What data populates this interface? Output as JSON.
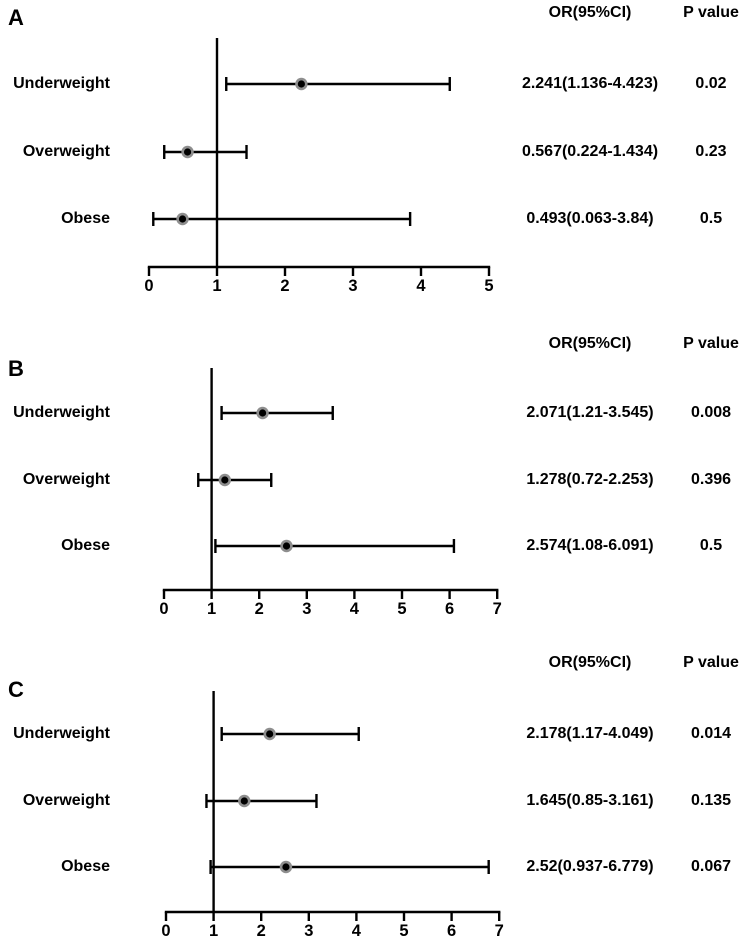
{
  "chart_data": [
    {
      "type": "forest",
      "panel": "A",
      "or_header": "OR(95%CI)",
      "p_header": "P value",
      "xlim": [
        0,
        5
      ],
      "ticks": [
        0,
        1,
        2,
        3,
        4,
        5
      ],
      "ref_line": 1,
      "rows": [
        {
          "label": "Underweight",
          "or": 2.241,
          "ci_low": 1.136,
          "ci_high": 4.423,
          "or_text": "2.241(1.136-4.423)",
          "p_text": "0.02"
        },
        {
          "label": "Overweight",
          "or": 0.567,
          "ci_low": 0.224,
          "ci_high": 1.434,
          "or_text": "0.567(0.224-1.434)",
          "p_text": "0.23"
        },
        {
          "label": "Obese",
          "or": 0.493,
          "ci_low": 0.063,
          "ci_high": 3.84,
          "or_text": "0.493(0.063-3.84)",
          "p_text": "0.5"
        }
      ]
    },
    {
      "type": "forest",
      "panel": "B",
      "or_header": "OR(95%CI)",
      "p_header": "P value",
      "xlim": [
        0,
        7
      ],
      "ticks": [
        0,
        1,
        2,
        3,
        4,
        5,
        6,
        7
      ],
      "ref_line": 1,
      "rows": [
        {
          "label": "Underweight",
          "or": 2.071,
          "ci_low": 1.21,
          "ci_high": 3.545,
          "or_text": "2.071(1.21-3.545)",
          "p_text": "0.008"
        },
        {
          "label": "Overweight",
          "or": 1.278,
          "ci_low": 0.72,
          "ci_high": 2.253,
          "or_text": "1.278(0.72-2.253)",
          "p_text": "0.396"
        },
        {
          "label": "Obese",
          "or": 2.574,
          "ci_low": 1.08,
          "ci_high": 6.091,
          "or_text": "2.574(1.08-6.091)",
          "p_text": "0.5"
        }
      ]
    },
    {
      "type": "forest",
      "panel": "C",
      "or_header": "OR(95%CI)",
      "p_header": "P value",
      "xlim": [
        0,
        7
      ],
      "ticks": [
        0,
        1,
        2,
        3,
        4,
        5,
        6,
        7
      ],
      "ref_line": 1,
      "rows": [
        {
          "label": "Underweight",
          "or": 2.178,
          "ci_low": 1.17,
          "ci_high": 4.049,
          "or_text": "2.178(1.17-4.049)",
          "p_text": "0.014"
        },
        {
          "label": "Overweight",
          "or": 1.645,
          "ci_low": 0.85,
          "ci_high": 3.161,
          "or_text": "1.645(0.85-3.161)",
          "p_text": "0.135"
        },
        {
          "label": "Obese",
          "or": 2.52,
          "ci_low": 0.937,
          "ci_high": 6.779,
          "or_text": "2.52(0.937-6.779)",
          "p_text": "0.067"
        }
      ]
    }
  ],
  "style": {
    "line_color": "#000000",
    "marker_ring_color": "#8e8e8e",
    "marker_dot_color": "#000000"
  }
}
